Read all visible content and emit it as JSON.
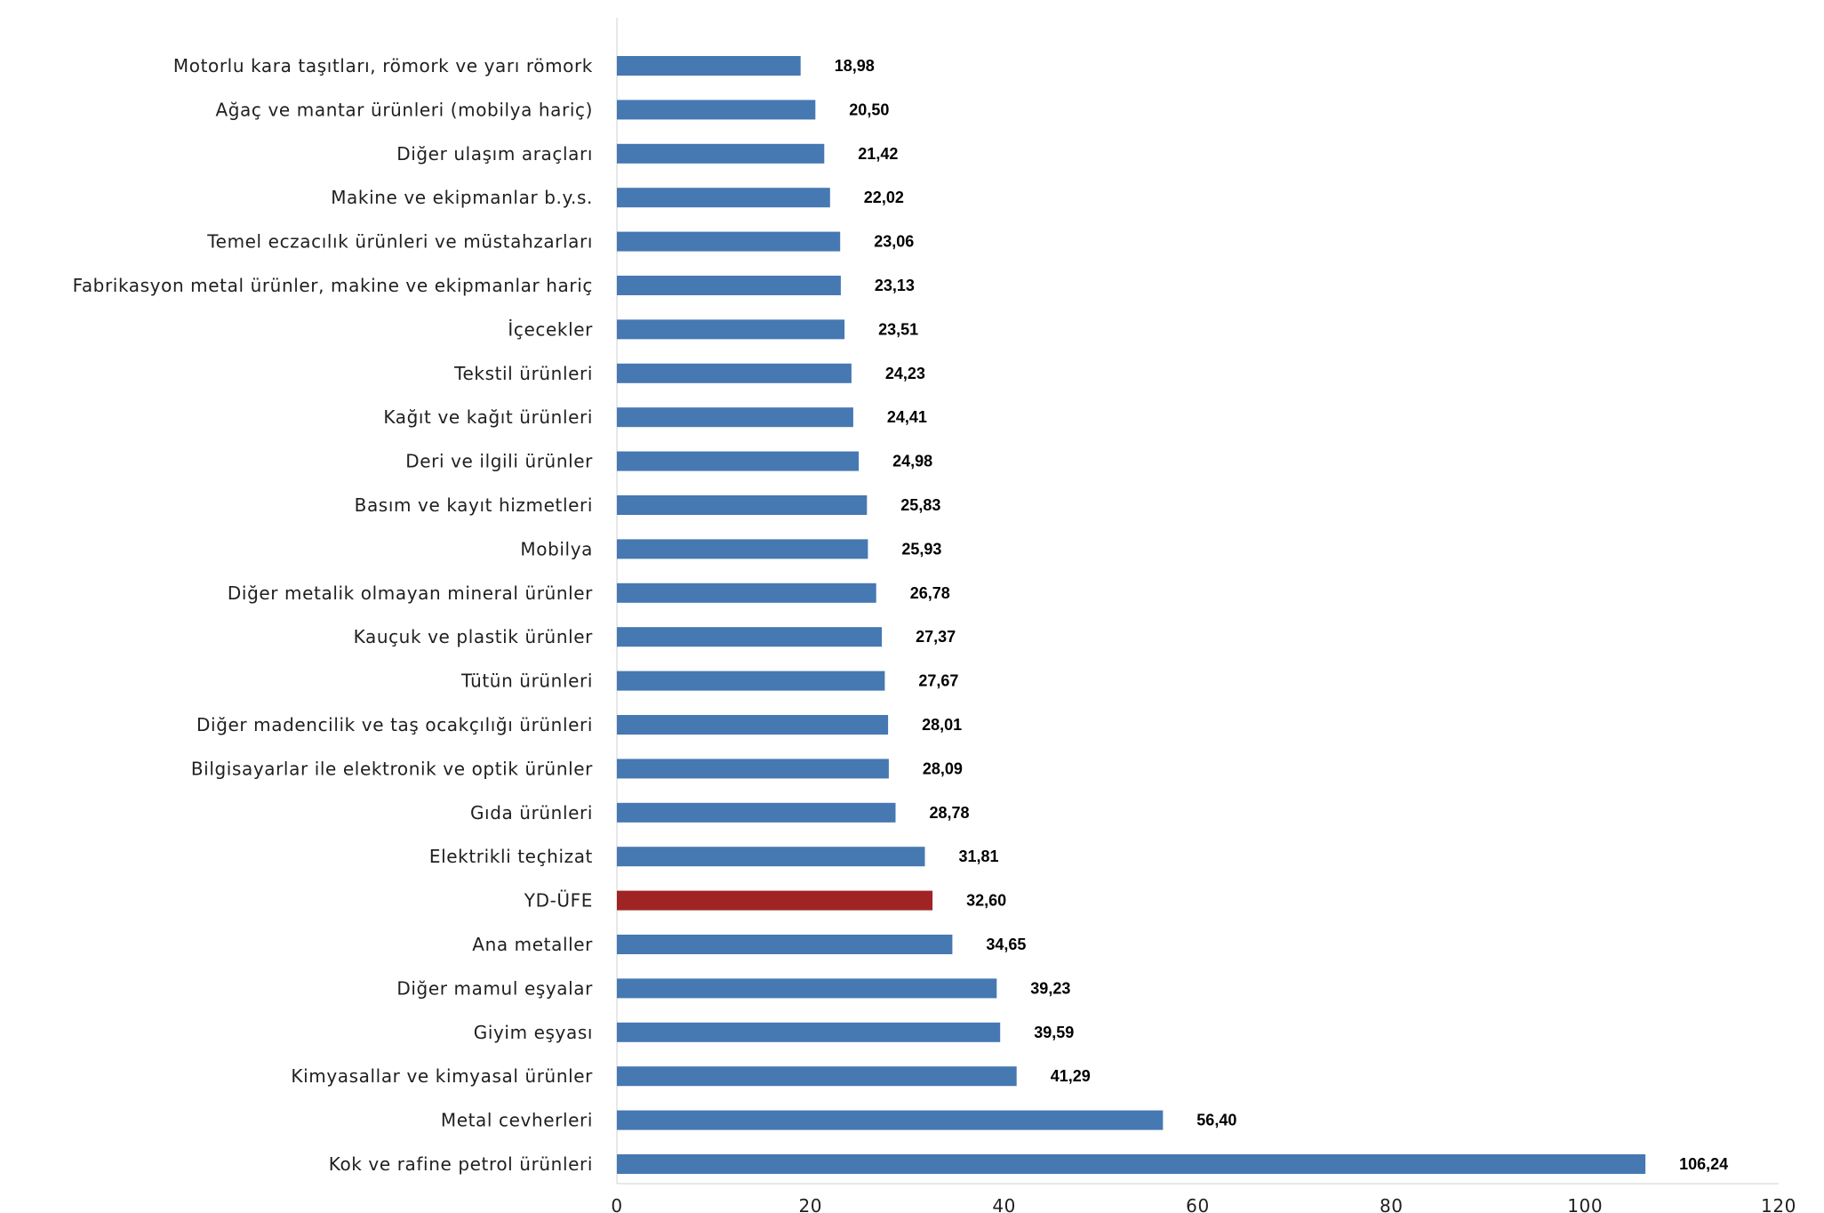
{
  "chart_data": {
    "type": "bar",
    "orientation": "horizontal",
    "title": "",
    "xlabel": "",
    "ylabel": "",
    "xlim": [
      0,
      120
    ],
    "x_ticks": [
      0,
      20,
      40,
      60,
      80,
      100,
      120
    ],
    "grid": false,
    "legend": "none",
    "colors": {
      "default_bar": "#4678B2",
      "highlight_bar": "#A02424",
      "axis": "#D0D0D0"
    },
    "categories": [
      "Motorlu kara taşıtları, römork ve yarı römork",
      "Ağaç ve mantar ürünleri (mobilya hariç)",
      "Diğer ulaşım araçları",
      "Makine ve ekipmanlar b.y.s.",
      "Temel eczacılık ürünleri ve müstahzarları",
      "Fabrikasyon metal ürünler, makine ve ekipmanlar hariç",
      "İçecekler",
      "Tekstil ürünleri",
      "Kağıt ve kağıt ürünleri",
      "Deri ve ilgili ürünler",
      "Basım ve kayıt hizmetleri",
      "Mobilya",
      "Diğer metalik olmayan mineral ürünler",
      "Kauçuk ve plastik ürünler",
      "Tütün ürünleri",
      "Diğer madencilik ve taş ocakçılığı ürünleri",
      "Bilgisayarlar ile elektronik ve optik ürünler",
      "Gıda ürünleri",
      "Elektrikli teçhizat",
      "YD-ÜFE",
      "Ana metaller",
      "Diğer mamul eşyalar",
      "Giyim eşyası",
      "Kimyasallar ve kimyasal ürünler",
      "Metal cevherleri",
      "Kok ve rafine petrol ürünleri"
    ],
    "values": [
      18.98,
      20.5,
      21.42,
      22.02,
      23.06,
      23.13,
      23.51,
      24.23,
      24.41,
      24.98,
      25.83,
      25.93,
      26.78,
      27.37,
      27.67,
      28.01,
      28.09,
      28.78,
      31.81,
      32.6,
      34.65,
      39.23,
      39.59,
      41.29,
      56.4,
      106.24
    ],
    "value_labels": [
      "18,98",
      "20,50",
      "21,42",
      "22,02",
      "23,06",
      "23,13",
      "23,51",
      "24,23",
      "24,41",
      "24,98",
      "25,83",
      "25,93",
      "26,78",
      "27,37",
      "27,67",
      "28,01",
      "28,09",
      "28,78",
      "31,81",
      "32,60",
      "34,65",
      "39,23",
      "39,59",
      "41,29",
      "56,40",
      "106,24"
    ],
    "highlight_category": "YD-ÜFE"
  }
}
